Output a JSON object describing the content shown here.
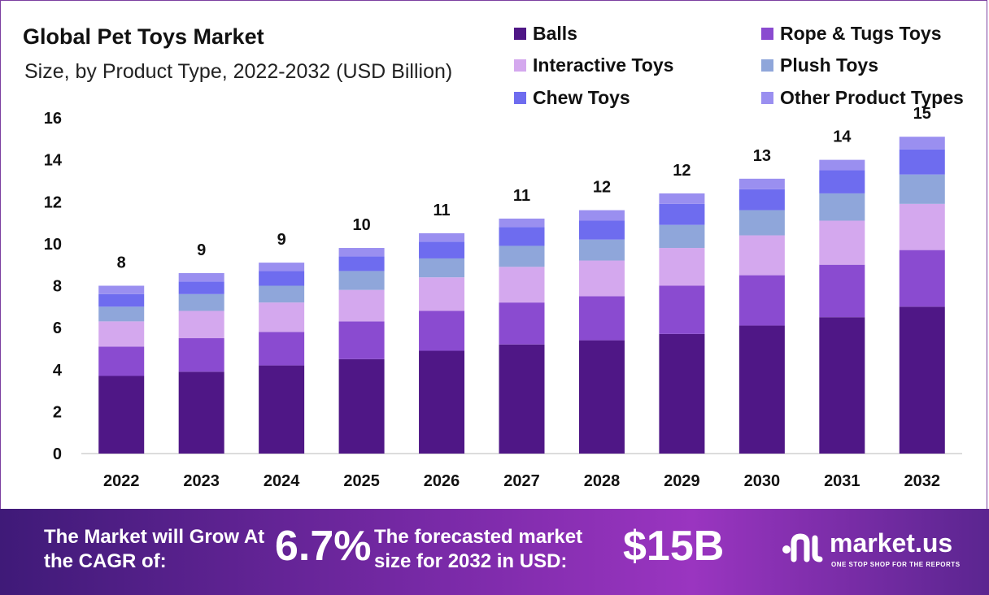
{
  "chart_data": {
    "type": "bar",
    "stacked": true,
    "title": "Global Pet Toys Market",
    "subtitle": "Size, by Product Type, 2022-2032 (USD Billion)",
    "categories": [
      "2022",
      "2023",
      "2024",
      "2025",
      "2026",
      "2027",
      "2028",
      "2029",
      "2030",
      "2031",
      "2032"
    ],
    "totals": [
      "8",
      "9",
      "9",
      "10",
      "11",
      "11",
      "12",
      "12",
      "13",
      "14",
      "15"
    ],
    "ylim": [
      0,
      16
    ],
    "yticks": [
      "0",
      "2",
      "4",
      "6",
      "8",
      "10",
      "12",
      "14",
      "16"
    ],
    "grid": false,
    "legend_position": "top-right",
    "series": [
      {
        "name": "Balls",
        "color": "#4f1786",
        "values": [
          3.7,
          3.9,
          4.2,
          4.5,
          4.9,
          5.2,
          5.4,
          5.7,
          6.1,
          6.5,
          7.0
        ]
      },
      {
        "name": "Rope & Tugs Toys",
        "color": "#8a4bd0",
        "values": [
          1.4,
          1.6,
          1.6,
          1.8,
          1.9,
          2.0,
          2.1,
          2.3,
          2.4,
          2.5,
          2.7
        ]
      },
      {
        "name": "Interactive Toys",
        "color": "#d4a8ee",
        "values": [
          1.2,
          1.3,
          1.4,
          1.5,
          1.6,
          1.7,
          1.7,
          1.8,
          1.9,
          2.1,
          2.2
        ]
      },
      {
        "name": "Plush Toys",
        "color": "#8fa6da",
        "values": [
          0.7,
          0.8,
          0.8,
          0.9,
          0.9,
          1.0,
          1.0,
          1.1,
          1.2,
          1.3,
          1.4
        ]
      },
      {
        "name": "Chew Toys",
        "color": "#6e6cef",
        "values": [
          0.6,
          0.6,
          0.7,
          0.7,
          0.8,
          0.9,
          0.9,
          1.0,
          1.0,
          1.1,
          1.2
        ]
      },
      {
        "name": "Other Product Types",
        "color": "#9a8ff0",
        "values": [
          0.4,
          0.4,
          0.4,
          0.4,
          0.4,
          0.4,
          0.5,
          0.5,
          0.5,
          0.5,
          0.6
        ]
      }
    ]
  },
  "footer": {
    "grow_label": "The Market will Grow At the CAGR of:",
    "cagr": "6.7%",
    "forecast_label": "The forecasted market size for 2032 in USD:",
    "market_size": "$15B",
    "brand_name": "market.us",
    "brand_tagline": "ONE STOP SHOP FOR THE REPORTS"
  }
}
